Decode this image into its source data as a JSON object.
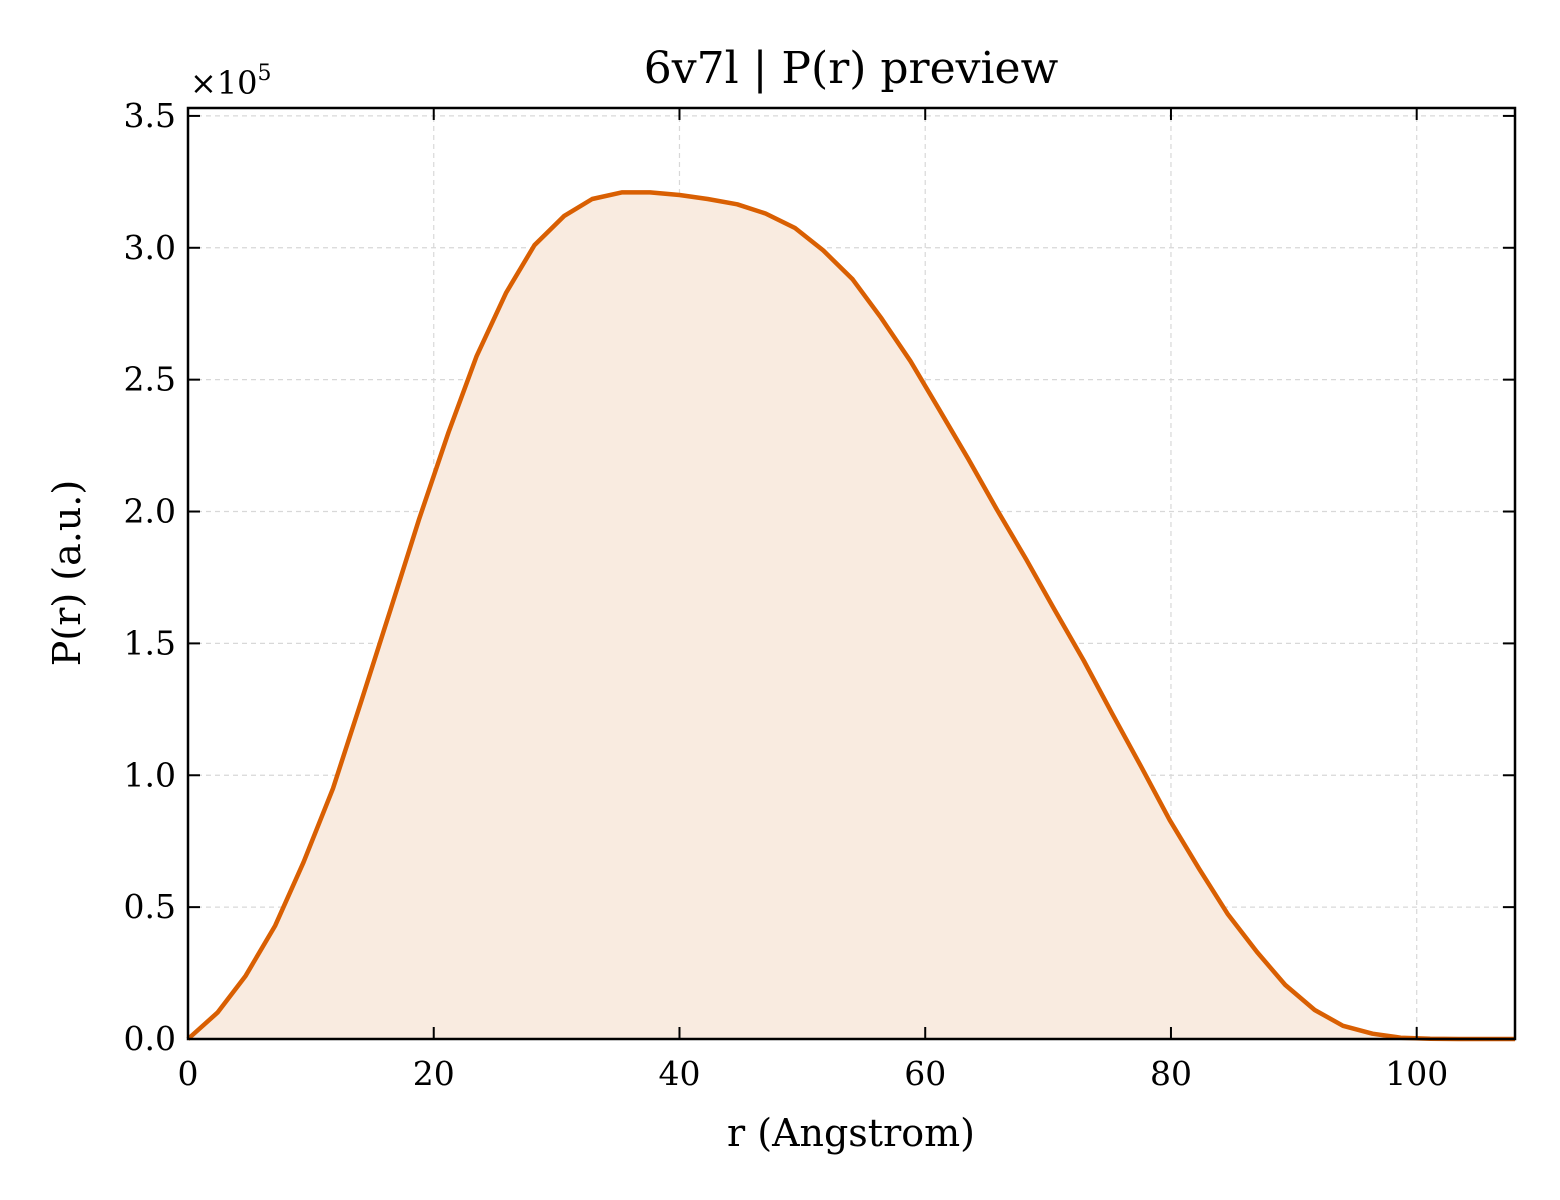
{
  "chart_data": {
    "type": "area",
    "title": "6v7l | P(r) preview",
    "xlabel": "r (Angstrom)",
    "ylabel": "P(r) (a.u.)",
    "y_multiplier": "×10",
    "y_exponent": "5",
    "xlim": [
      0,
      108
    ],
    "ylim": [
      0,
      3.53
    ],
    "xticks": [
      0,
      20,
      40,
      60,
      80,
      100
    ],
    "xtick_labels": [
      "0",
      "20",
      "40",
      "60",
      "80",
      "100"
    ],
    "yticks": [
      0,
      0.5,
      1.0,
      1.5,
      2.0,
      2.5,
      3.0,
      3.5
    ],
    "ytick_labels": [
      "0.0",
      "0.5",
      "1.0",
      "1.5",
      "2.0",
      "2.5",
      "3.0",
      "3.5"
    ],
    "grid": true,
    "colors": {
      "line": "#d95f02",
      "fill": "#f9ebe0"
    },
    "series": [
      {
        "x": [
          0,
          2.4,
          4.7,
          7.1,
          9.4,
          11.8,
          14.1,
          16.5,
          18.8,
          21.2,
          23.5,
          25.9,
          28.2,
          30.6,
          32.9,
          35.3,
          37.6,
          40.0,
          42.3,
          44.7,
          47.0,
          49.4,
          51.7,
          54.1,
          56.4,
          58.8,
          61.1,
          63.5,
          65.8,
          68.2,
          70.5,
          72.9,
          75.2,
          77.6,
          79.9,
          82.3,
          84.6,
          87.0,
          89.3,
          91.7,
          94.0,
          96.4,
          98.7,
          101.1,
          103.4,
          105.8,
          108.0
        ],
        "values": [
          0.0,
          0.1,
          0.24,
          0.43,
          0.67,
          0.95,
          1.28,
          1.63,
          1.97,
          2.3,
          2.59,
          2.83,
          3.01,
          3.12,
          3.185,
          3.21,
          3.21,
          3.2,
          3.185,
          3.165,
          3.13,
          3.075,
          2.99,
          2.88,
          2.735,
          2.57,
          2.39,
          2.2,
          2.01,
          1.82,
          1.63,
          1.435,
          1.235,
          1.03,
          0.83,
          0.645,
          0.475,
          0.33,
          0.205,
          0.11,
          0.05,
          0.02,
          0.005,
          0.001,
          0.0,
          0.0,
          0.0
        ]
      }
    ]
  }
}
